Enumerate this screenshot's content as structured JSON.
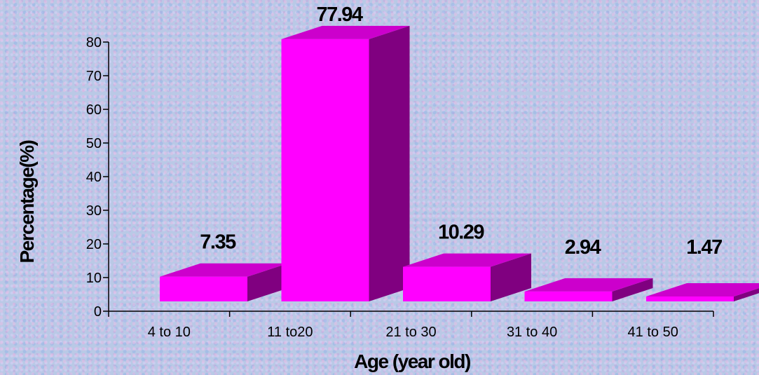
{
  "chart_data": {
    "type": "bar",
    "style": "3d",
    "categories": [
      "4 to 10",
      "11 to20",
      "21 to 30",
      "31 to 40",
      "41 to 50"
    ],
    "values": [
      7.35,
      77.94,
      10.29,
      2.94,
      1.47
    ],
    "data_labels": [
      "7.35",
      "77.94",
      "10.29",
      "2.94",
      "1.47"
    ],
    "xlabel": "Age (year old)",
    "ylabel": "Percentage(%)",
    "ylim": [
      0,
      80
    ],
    "yticks": [
      "0",
      "10",
      "20",
      "30",
      "40",
      "50",
      "60",
      "70",
      "80"
    ],
    "grid": false,
    "legend": "none",
    "colors": {
      "front": "#ff00ff",
      "top": "#cc00cc",
      "side": "#800080",
      "axis": "#000000"
    }
  }
}
